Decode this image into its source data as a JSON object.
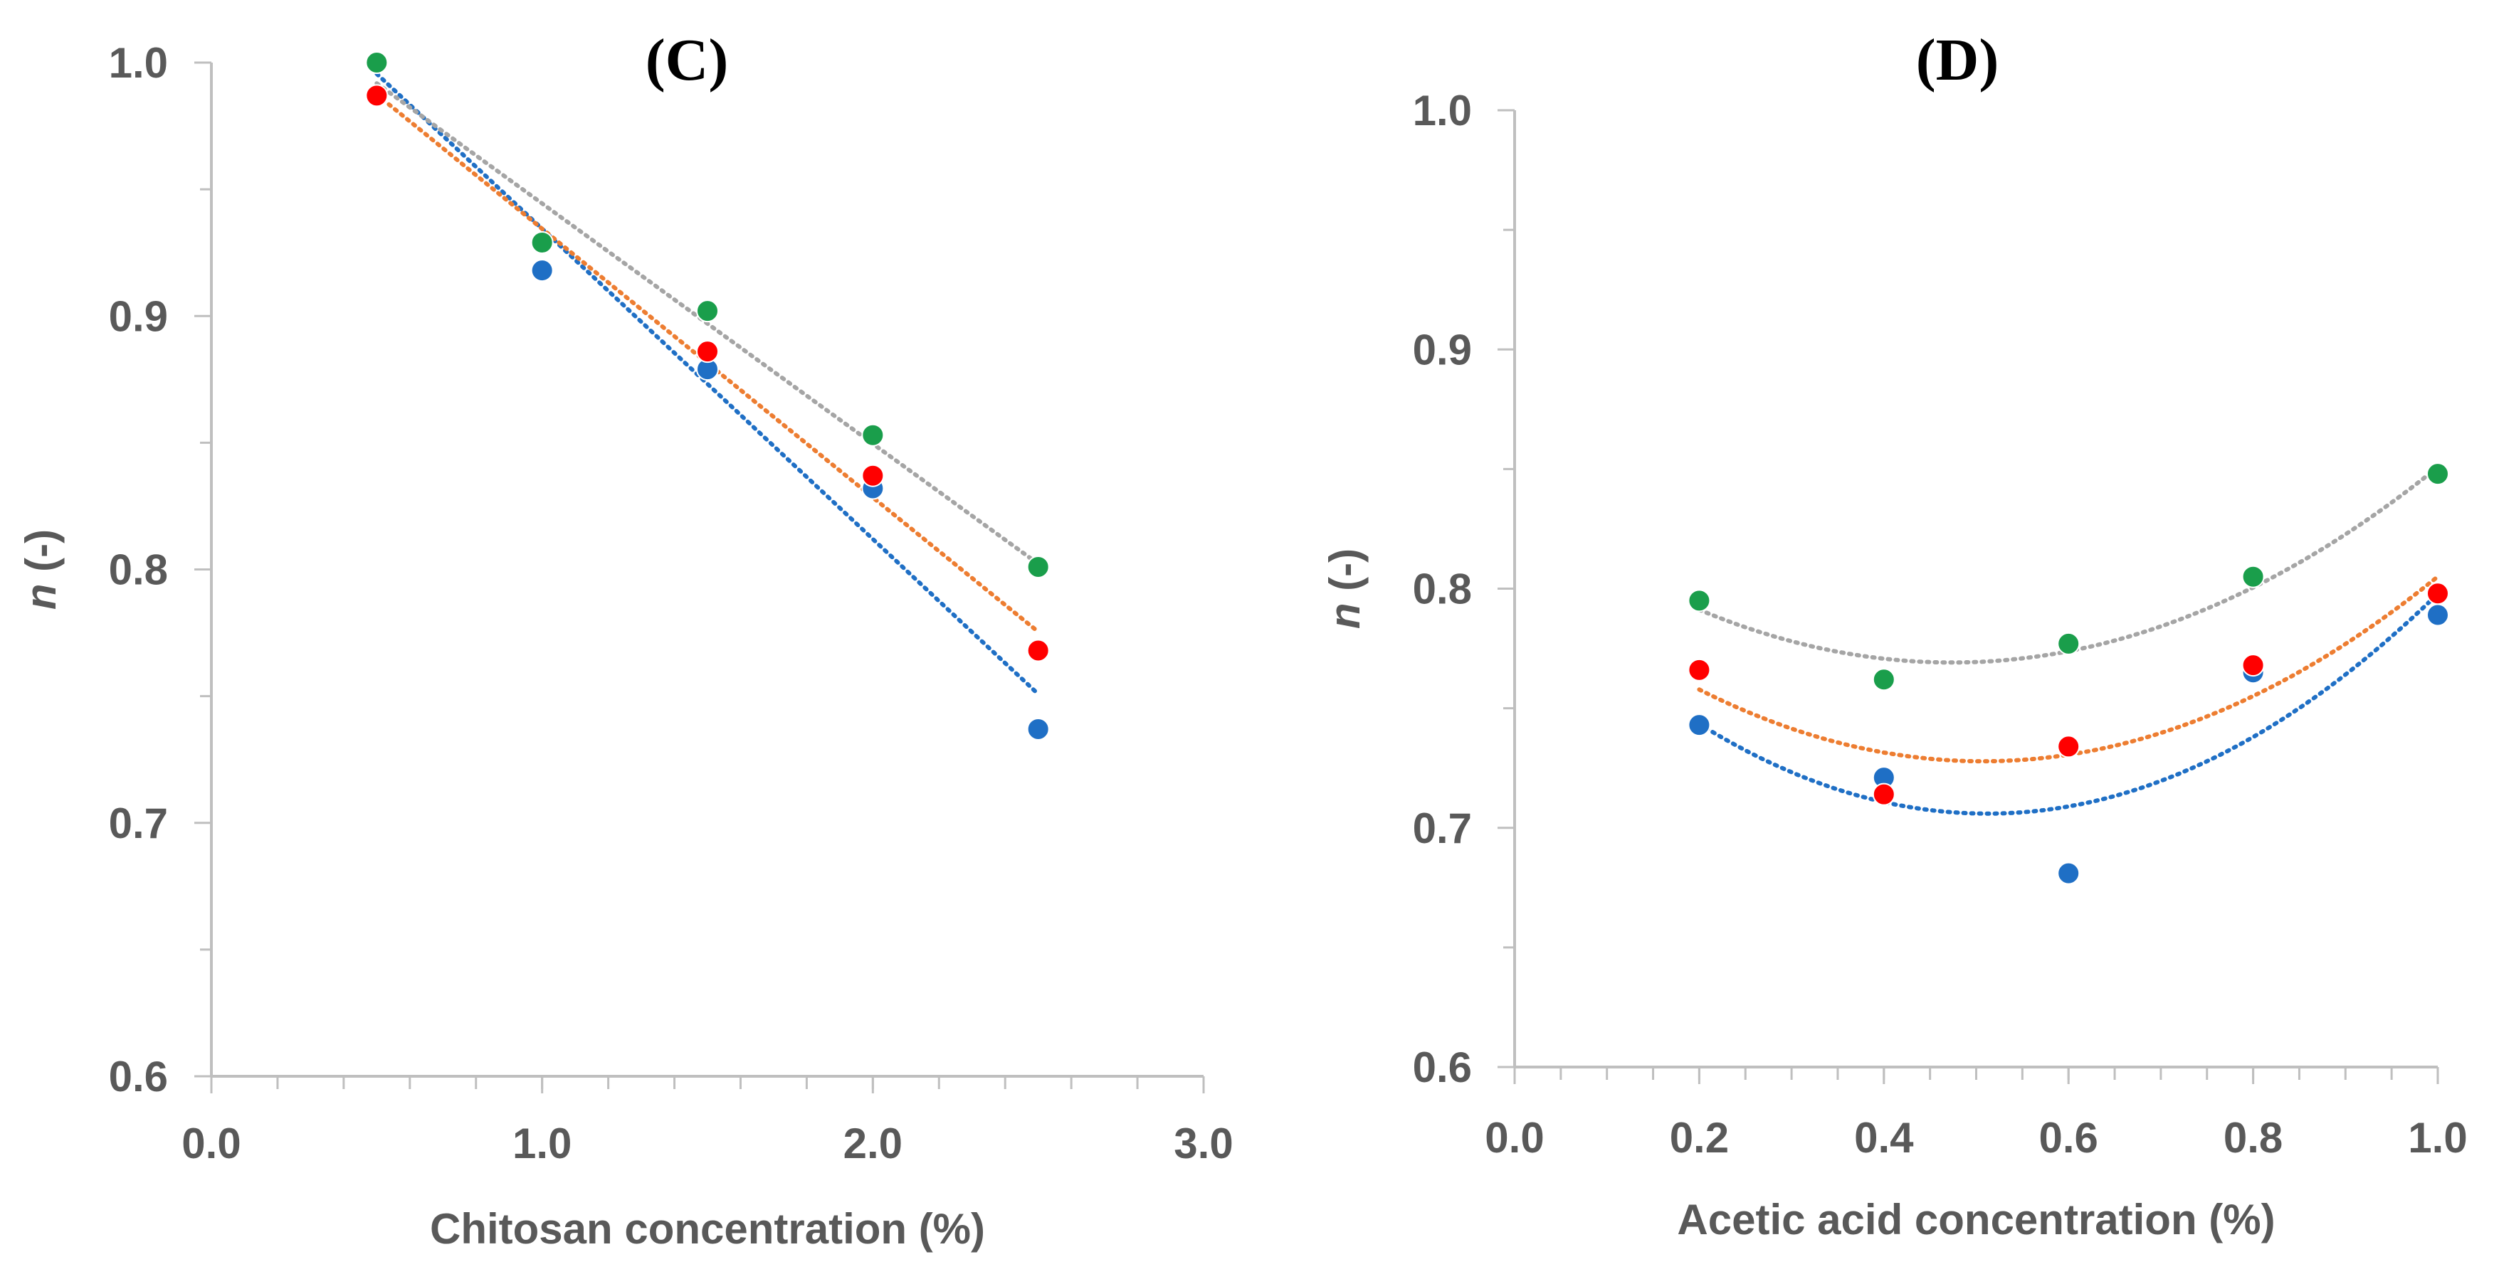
{
  "colors": {
    "blue": "#1f6fc5",
    "red": "#ff0000",
    "green": "#1a9e4b",
    "orange_line": "#ed7d31",
    "gray_line": "#a5a5a5",
    "axis": "#bfbfbf",
    "text": "#595959"
  },
  "chart_data": [
    {
      "type": "scatter",
      "title": "(C)",
      "xlabel": "Chitosan concentration (%)",
      "ylabel_var": "n",
      "ylabel_unit": " (-)",
      "xlim": [
        0,
        3
      ],
      "ylim": [
        0.6,
        1.0
      ],
      "x_ticks": [
        "0.0",
        "1.0",
        "2.0",
        "3.0"
      ],
      "y_ticks": [
        "0.6",
        "0.7",
        "0.8",
        "0.9",
        "1.0"
      ],
      "x_minor_step": 0.2,
      "trendline_type": "linear",
      "grid": false,
      "series": [
        {
          "color": "#1f6fc5",
          "line_color": "#1f6fc5",
          "x": [
            0.5,
            1.0,
            1.5,
            2.0,
            2.5
          ],
          "y": [
            1.0,
            0.918,
            0.879,
            0.832,
            0.737
          ]
        },
        {
          "color": "#ff0000",
          "line_color": "#ed7d31",
          "x": [
            0.5,
            1.0,
            1.5,
            2.0,
            2.5
          ],
          "y": [
            0.987,
            0.929,
            0.886,
            0.837,
            0.768
          ]
        },
        {
          "color": "#1a9e4b",
          "line_color": "#a5a5a5",
          "x": [
            0.5,
            1.0,
            1.5,
            2.0,
            2.5
          ],
          "y": [
            1.0,
            0.929,
            0.902,
            0.853,
            0.801
          ]
        }
      ]
    },
    {
      "type": "scatter",
      "title": "(D)",
      "xlabel": "Acetic acid concentration (%)",
      "ylabel_var": "n",
      "ylabel_unit": " (-)",
      "xlim": [
        0,
        1
      ],
      "ylim": [
        0.6,
        1.0
      ],
      "x_ticks": [
        "0.0",
        "0.2",
        "0.4",
        "0.6",
        "0.8",
        "1.0"
      ],
      "y_ticks": [
        "0.6",
        "0.7",
        "0.8",
        "0.9",
        "1.0"
      ],
      "x_minor_step": 0.05,
      "trendline_type": "quadratic",
      "grid": false,
      "series": [
        {
          "color": "#1f6fc5",
          "line_color": "#1f6fc5",
          "x": [
            0.2,
            0.4,
            0.6,
            0.8,
            1.0
          ],
          "y": [
            0.743,
            0.721,
            0.681,
            0.765,
            0.789
          ]
        },
        {
          "color": "#ff0000",
          "line_color": "#ed7d31",
          "x": [
            0.2,
            0.4,
            0.6,
            0.8,
            1.0
          ],
          "y": [
            0.766,
            0.714,
            0.734,
            0.768,
            0.798
          ]
        },
        {
          "color": "#1a9e4b",
          "line_color": "#a5a5a5",
          "x": [
            0.2,
            0.4,
            0.6,
            0.8,
            1.0
          ],
          "y": [
            0.795,
            0.762,
            0.777,
            0.805,
            0.848
          ]
        }
      ]
    }
  ]
}
